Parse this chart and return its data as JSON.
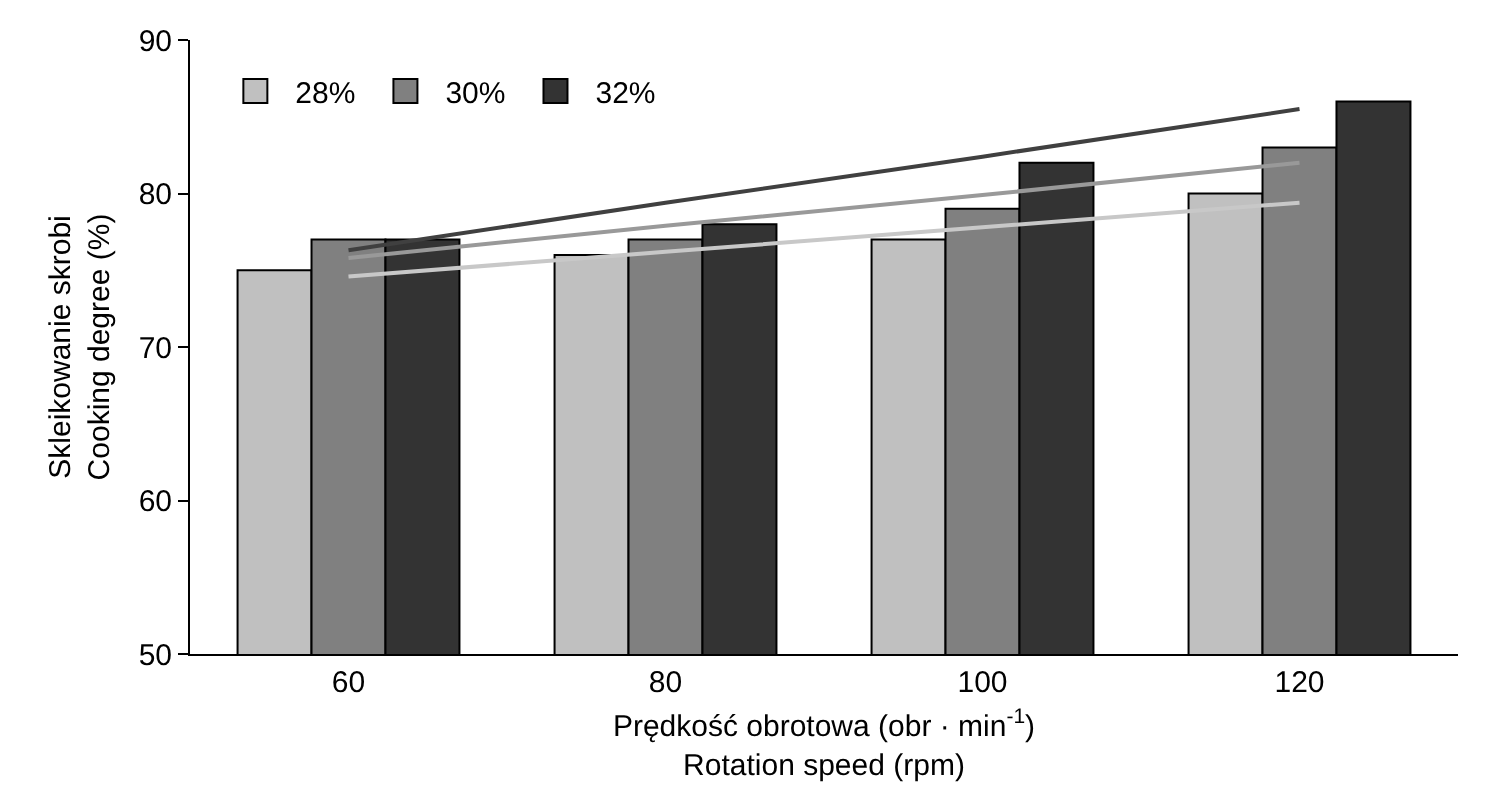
{
  "chart_data": {
    "type": "bar",
    "categories": [
      "60",
      "80",
      "100",
      "120"
    ],
    "xlabel": "Prędkość obrotowa (obr · min$^{-1}$)\nRotation speed (rpm)",
    "ylabel": "Skleikowanie skrobi\nCooking degree (%)",
    "ylim": [
      50,
      90
    ],
    "yticks": [
      50,
      60,
      70,
      80,
      90
    ],
    "grid": false,
    "legend": "top left",
    "series": [
      {
        "name": "28%",
        "color": "#c0c0c0",
        "values": [
          75,
          76,
          77,
          80
        ]
      },
      {
        "name": "30%",
        "color": "#808080",
        "values": [
          77,
          77,
          79,
          83
        ]
      },
      {
        "name": "32%",
        "color": "#333333",
        "values": [
          77,
          78,
          82,
          86
        ]
      },
      {
        "type": "line",
        "color": "#c8c8c8",
        "values": [
          74.6,
          76.2,
          77.8,
          79.4
        ]
      },
      {
        "type": "line",
        "color": "#999999",
        "values": [
          75.8,
          77.9,
          79.9,
          82.0
        ]
      },
      {
        "type": "line",
        "color": "#404040",
        "values": [
          76.3,
          79.4,
          82.4,
          85.5
        ]
      }
    ]
  }
}
